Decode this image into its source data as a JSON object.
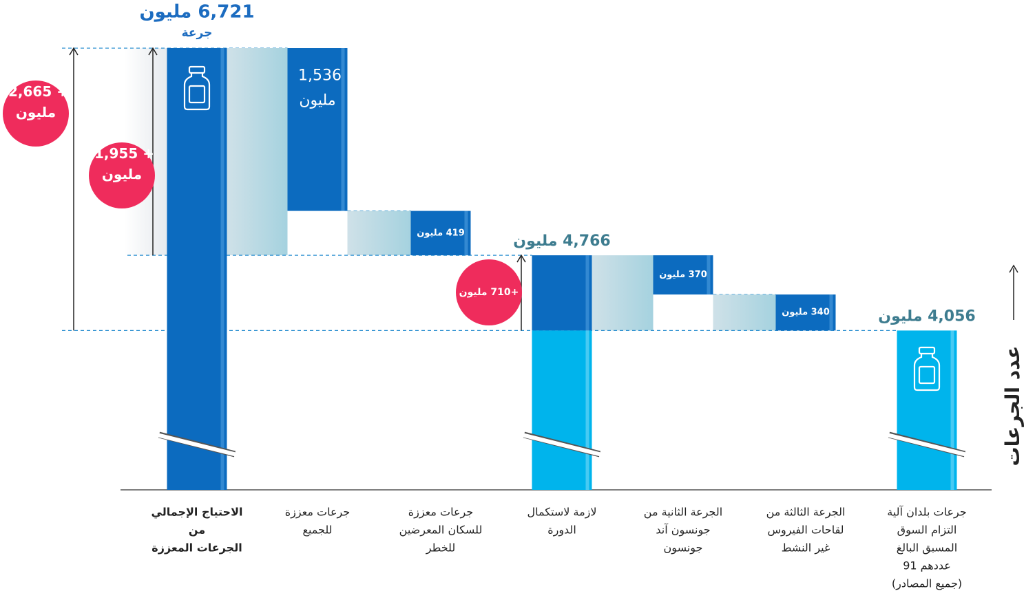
{
  "chart_data": {
    "type": "waterfall",
    "axis_label": "عدد الجرعات",
    "unit_label": "جرعة",
    "categories": [
      [
        "الاحتياج الإجمالي",
        "من",
        "الجرعات المعززة"
      ],
      [
        "جرعات معززة",
        "للجميع"
      ],
      [
        "جرعات معززة",
        "للسكان المعرضين",
        "للخطر"
      ],
      [
        "لازمة لاستكمال",
        "الدورة"
      ],
      [
        "الجرعة الثانية من",
        "جونسون آند",
        "جونسون"
      ],
      [
        "الجرعة الثالثة من",
        "لقاحات الفيروس",
        "غير النشط"
      ],
      [
        "جرعات بلدان آلية",
        "التزام السوق",
        "المسبق البالغ",
        "عددهم 91",
        "(جميع المصادر)"
      ]
    ],
    "measure": [
      "absolute",
      "relative",
      "relative",
      "absolute",
      "relative",
      "relative",
      "absolute"
    ],
    "values": [
      6721,
      1536,
      419,
      4766,
      370,
      340,
      4056
    ],
    "value_labels": [
      "6,721 مليون",
      "1,536 مليون",
      "419 مليون",
      "4,766 مليون",
      "370 مليون",
      "340 مليون",
      "4,056 مليون"
    ],
    "color": "#0c6bbf",
    "secondary_color": "#00b4ec",
    "differences": [
      {
        "value": 2665,
        "label": "+ 2,665 مليون"
      },
      {
        "value": 1955,
        "label": "+ 1,955 مليون"
      },
      {
        "value": 710,
        "label": "+710 مليون"
      }
    ],
    "difference_color": "#ef2c5c"
  }
}
